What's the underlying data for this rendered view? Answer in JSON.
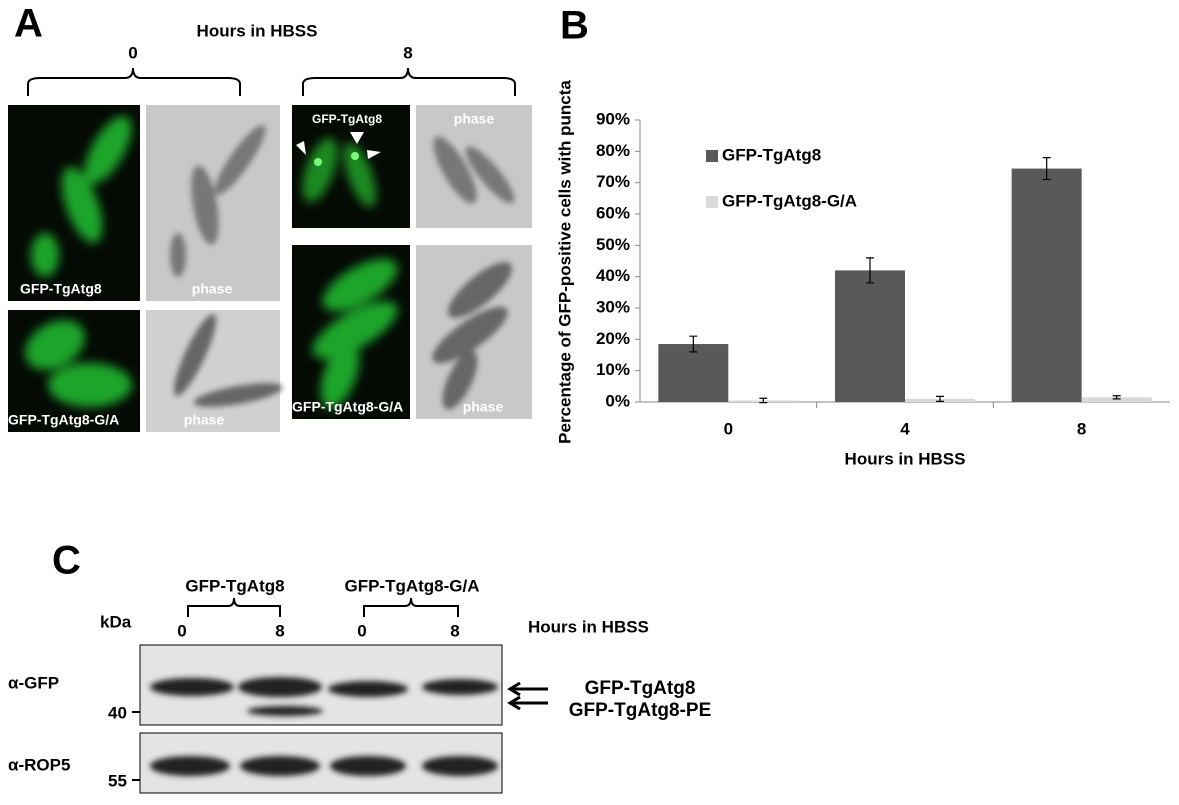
{
  "panel_a": {
    "label": "A",
    "header": "Hours in HBSS",
    "times": [
      "0",
      "8"
    ],
    "images": [
      "GFP-TgAtg8",
      "phase",
      "GFP-TgAtg8-G/A",
      "phase",
      "GFP-TgAtg8",
      "phase",
      "GFP-TgAtg8-G/A",
      "phase"
    ]
  },
  "chart_data": {
    "type": "bar",
    "label": "B",
    "y_label": "Percentage of GFP-positive cells with puncta",
    "x_label": "Hours in HBSS",
    "categories": [
      "0",
      "4",
      "8"
    ],
    "series": [
      {
        "name": "GFP-TgAtg8",
        "color": "#595959",
        "values": [
          18.5,
          42,
          74.5
        ],
        "errors": [
          2.5,
          4,
          3.5
        ]
      },
      {
        "name": "GFP-TgAtg8-G/A",
        "color": "#d9d9d9",
        "values": [
          0.5,
          1,
          1.5
        ],
        "errors": [
          0.7,
          0.8,
          0.5
        ]
      }
    ],
    "ylim": [
      0,
      90
    ],
    "yticks": [
      {
        "value": 0,
        "label": "0%"
      },
      {
        "value": 10,
        "label": "10%"
      },
      {
        "value": 20,
        "label": "20%"
      },
      {
        "value": 30,
        "label": "30%"
      },
      {
        "value": 40,
        "label": "40%"
      },
      {
        "value": 50,
        "label": "50%"
      },
      {
        "value": 60,
        "label": "60%"
      },
      {
        "value": 70,
        "label": "70%"
      },
      {
        "value": 80,
        "label": "80%"
      },
      {
        "value": 90,
        "label": "90%"
      }
    ],
    "grid": false,
    "legend": "upper left"
  },
  "panel_c": {
    "label": "C",
    "groups": [
      "GFP-TgAtg8",
      "GFP-TgAtg8-G/A"
    ],
    "unit": "kDa",
    "times": [
      "0",
      "8",
      "0",
      "8"
    ],
    "time_label": "Hours in HBSS",
    "rows": [
      {
        "antibody": "α-GFP",
        "marker": 40
      },
      {
        "antibody": "α-ROP5",
        "marker": 55
      }
    ],
    "bands": [
      "GFP-TgAtg8",
      "GFP-TgAtg8-PE"
    ]
  }
}
